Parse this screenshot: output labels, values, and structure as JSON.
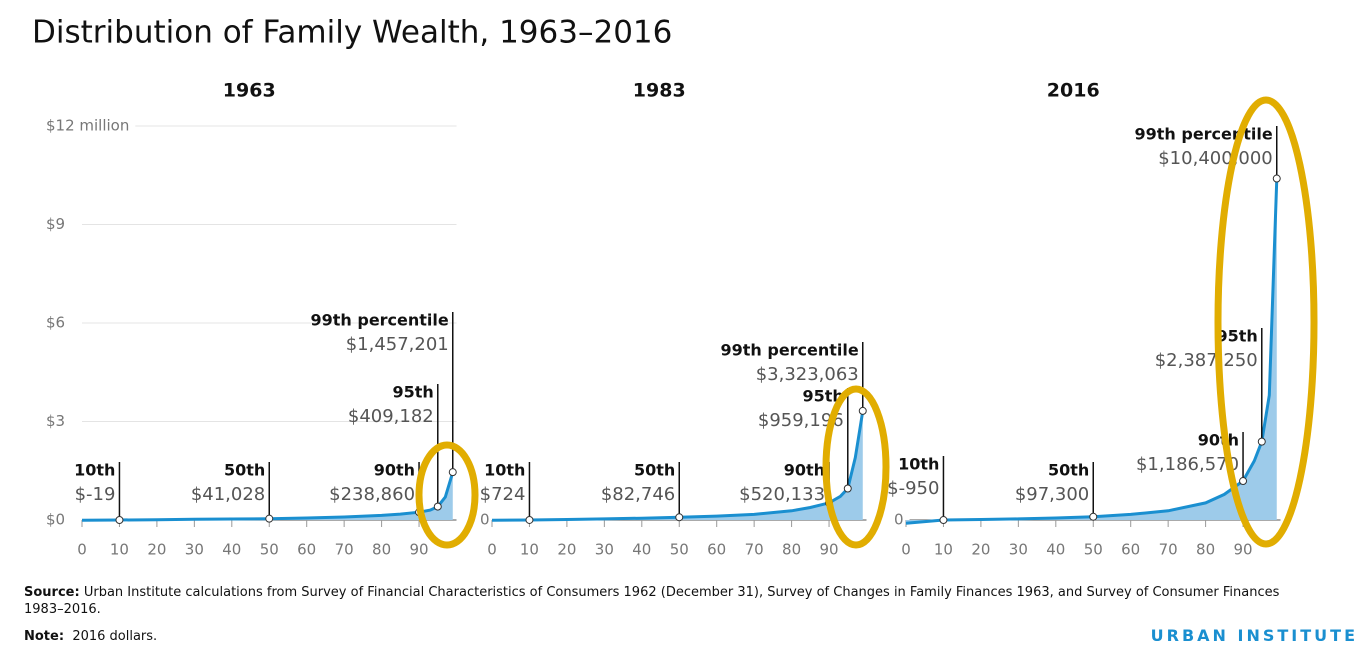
{
  "title": "Distribution of Family Wealth, 1963–2016",
  "chart_data": [
    {
      "type": "area",
      "title": "1963",
      "xlim": [
        0,
        100
      ],
      "xticks": [
        0,
        10,
        20,
        30,
        40,
        50,
        60,
        70,
        80,
        90
      ],
      "ylim": [
        0,
        12
      ],
      "yticks": [
        {
          "value": 0,
          "label": "$0"
        },
        {
          "value": 3,
          "label": "$3"
        },
        {
          "value": 6,
          "label": "$6"
        },
        {
          "value": 9,
          "label": "$9"
        },
        {
          "value": 12,
          "label": "$12 million"
        }
      ],
      "grid": true,
      "color": "#1a8fd0",
      "x": [
        0,
        10,
        20,
        30,
        40,
        50,
        60,
        70,
        80,
        85,
        90,
        93,
        95,
        97,
        99
      ],
      "values": [
        -0.01,
        -1.9e-05,
        0.008,
        0.02,
        0.03,
        0.041028,
        0.06,
        0.09,
        0.14,
        0.18,
        0.23886,
        0.3,
        0.409182,
        0.7,
        1.457201
      ],
      "highlights": {
        "labels": [
          "10th",
          "50th",
          "90th",
          "95th",
          "99th percentile"
        ],
        "x": [
          10,
          50,
          90,
          95,
          99
        ],
        "values": [
          -1.9e-05,
          0.041028,
          0.23886,
          0.409182,
          1.457201
        ],
        "value_labels": [
          "$-19",
          "$41,028",
          "$238,860",
          "$409,182",
          "$1,457,201"
        ]
      }
    },
    {
      "type": "area",
      "title": "1983",
      "xlim": [
        0,
        100
      ],
      "xticks": [
        0,
        10,
        20,
        30,
        40,
        50,
        60,
        70,
        80,
        90
      ],
      "ylim": [
        0,
        12
      ],
      "yticks": [
        {
          "value": 0,
          "label": "0"
        }
      ],
      "grid": true,
      "color": "#1a8fd0",
      "x": [
        0,
        10,
        20,
        30,
        40,
        50,
        60,
        70,
        80,
        85,
        90,
        93,
        95,
        97,
        99
      ],
      "values": [
        -0.01,
        0.000724,
        0.015,
        0.035,
        0.055,
        0.082746,
        0.12,
        0.17,
        0.28,
        0.38,
        0.520133,
        0.72,
        0.959196,
        1.9,
        3.323063
      ],
      "highlights": {
        "labels": [
          "10th",
          "50th",
          "90th",
          "95th",
          "99th percentile"
        ],
        "x": [
          10,
          50,
          90,
          95,
          99
        ],
        "values": [
          0.000724,
          0.082746,
          0.520133,
          0.959196,
          3.323063
        ],
        "value_labels": [
          "$724",
          "$82,746",
          "$520,133",
          "$959,196",
          "$3,323,063"
        ]
      }
    },
    {
      "type": "area",
      "title": "2016",
      "xlim": [
        0,
        100
      ],
      "xticks": [
        0,
        10,
        20,
        30,
        40,
        50,
        60,
        70,
        80,
        90
      ],
      "ylim": [
        0,
        12
      ],
      "yticks": [
        {
          "value": 0,
          "label": "0"
        }
      ],
      "grid": true,
      "color": "#1a8fd0",
      "x": [
        0,
        10,
        20,
        30,
        40,
        50,
        60,
        70,
        80,
        85,
        90,
        93,
        95,
        97,
        99
      ],
      "values": [
        -0.1,
        -0.00095,
        0.015,
        0.035,
        0.06,
        0.0973,
        0.17,
        0.28,
        0.52,
        0.78,
        1.18657,
        1.8,
        2.38725,
        3.8,
        10.4
      ],
      "highlights": {
        "labels": [
          "10th",
          "50th",
          "90th",
          "95th",
          "99th percentile"
        ],
        "x": [
          10,
          50,
          90,
          95,
          99
        ],
        "values": [
          -0.00095,
          0.0973,
          1.18657,
          2.38725,
          10.4
        ],
        "value_labels": [
          "$-950",
          "$97,300",
          "$1,186,570",
          "$2,387,250",
          "$10,400,000"
        ]
      }
    }
  ],
  "source": {
    "label": "Source:",
    "text": "Urban Institute calculations from Survey of Financial Characteristics of Consumers 1962 (December 31), Survey of Changes in Family Finances 1963, and Survey of Consumer Finances 1983–2016."
  },
  "note": {
    "label": "Note:",
    "text": "2016 dollars."
  },
  "brand": "URBAN INSTITUTE"
}
